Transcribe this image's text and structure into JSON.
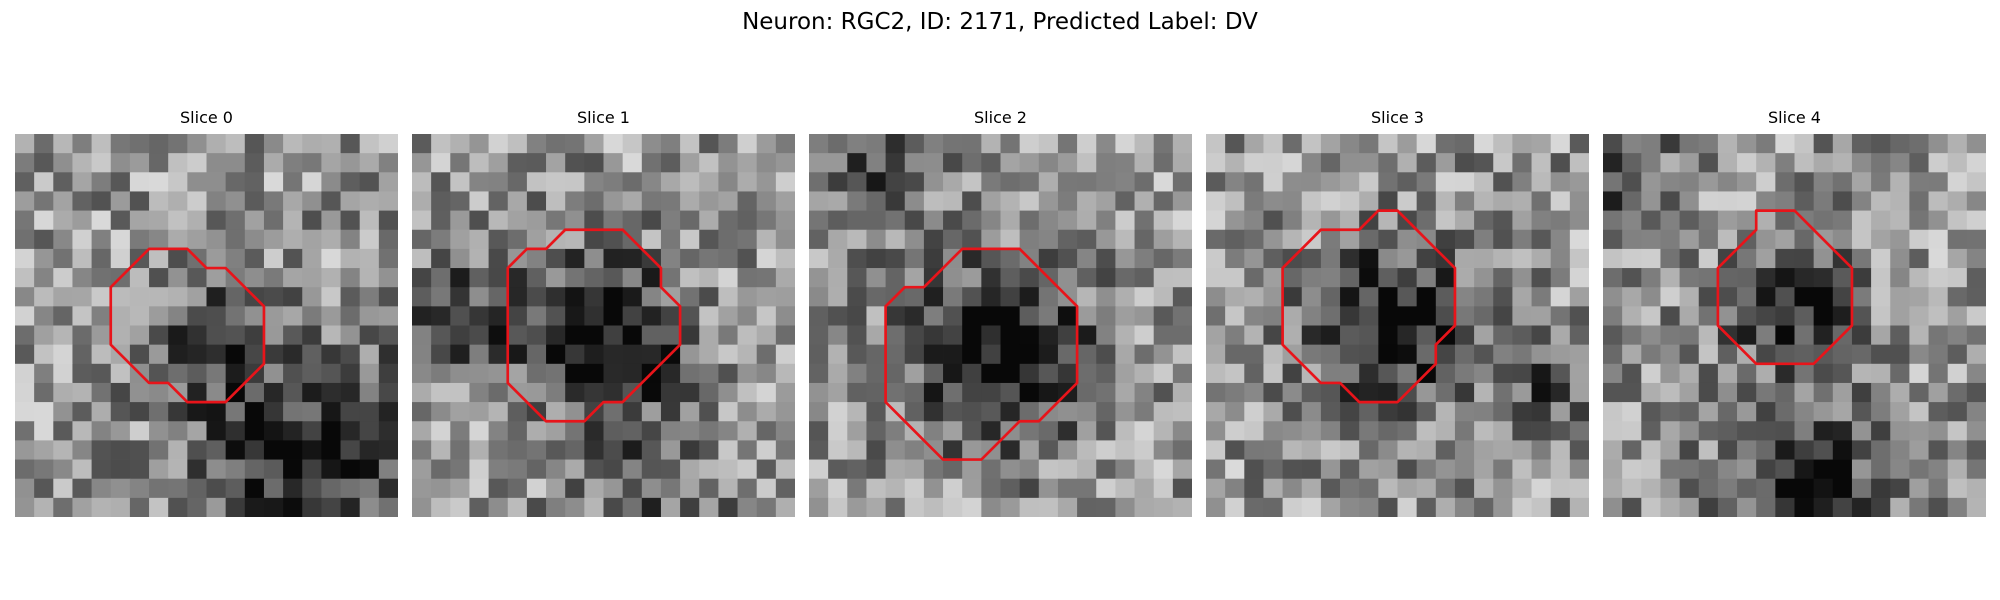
{
  "figure": {
    "title": "Neuron: RGC2, ID: 2171, Predicted Label: DV"
  },
  "panels": [
    {
      "title": "Slice 0",
      "roi_color": "#e8141a",
      "roi": [
        [
          10,
          7
        ],
        [
          11,
          7
        ],
        [
          12,
          8
        ],
        [
          13,
          9
        ],
        [
          13,
          12
        ],
        [
          12,
          13
        ],
        [
          11,
          14
        ],
        [
          9,
          14
        ],
        [
          8,
          13
        ],
        [
          7,
          13
        ],
        [
          6,
          12
        ],
        [
          5,
          11
        ],
        [
          5,
          8
        ],
        [
          6,
          7
        ],
        [
          7,
          6
        ],
        [
          9,
          6
        ]
      ],
      "dark_blobs": [
        [
          9.5,
          10.5,
          3.2,
          0.35
        ],
        [
          17,
          16,
          5,
          0.4
        ],
        [
          12,
          17,
          4,
          0.25
        ]
      ]
    },
    {
      "title": "Slice 1",
      "roi_color": "#e8141a",
      "roi": [
        [
          7,
          6
        ],
        [
          8,
          5
        ],
        [
          11,
          5
        ],
        [
          12,
          6
        ],
        [
          13,
          7
        ],
        [
          13,
          8
        ],
        [
          14,
          9
        ],
        [
          14,
          11
        ],
        [
          13,
          12
        ],
        [
          12,
          13
        ],
        [
          11,
          14
        ],
        [
          10,
          14
        ],
        [
          9,
          15
        ],
        [
          7,
          15
        ],
        [
          6,
          14
        ],
        [
          5,
          13
        ],
        [
          5,
          7
        ],
        [
          6,
          6
        ]
      ],
      "dark_blobs": [
        [
          9.5,
          10,
          4,
          0.6
        ],
        [
          2,
          9,
          3,
          0.3
        ],
        [
          12,
          18,
          4,
          0.2
        ]
      ]
    },
    {
      "title": "Slice 2",
      "roi_color": "#e8141a",
      "roi": [
        [
          6,
          8
        ],
        [
          7,
          7
        ],
        [
          8,
          6
        ],
        [
          11,
          6
        ],
        [
          12,
          7
        ],
        [
          13,
          8
        ],
        [
          14,
          9
        ],
        [
          14,
          13
        ],
        [
          13,
          14
        ],
        [
          12,
          15
        ],
        [
          11,
          15
        ],
        [
          10,
          16
        ],
        [
          9,
          17
        ],
        [
          7,
          17
        ],
        [
          6,
          16
        ],
        [
          5,
          15
        ],
        [
          4,
          14
        ],
        [
          4,
          9
        ],
        [
          5,
          8
        ]
      ],
      "dark_blobs": [
        [
          9.5,
          11,
          4.5,
          0.6
        ],
        [
          3,
          2,
          3,
          0.3
        ]
      ]
    },
    {
      "title": "Slice 3",
      "roi_color": "#e8141a",
      "roi": [
        [
          7,
          5
        ],
        [
          8,
          5
        ],
        [
          9,
          4
        ],
        [
          10,
          4
        ],
        [
          11,
          5
        ],
        [
          12,
          6
        ],
        [
          13,
          7
        ],
        [
          13,
          10
        ],
        [
          12,
          11
        ],
        [
          12,
          12
        ],
        [
          11,
          13
        ],
        [
          10,
          14
        ],
        [
          8,
          14
        ],
        [
          7,
          13
        ],
        [
          6,
          13
        ],
        [
          5,
          12
        ],
        [
          4,
          11
        ],
        [
          4,
          7
        ],
        [
          5,
          6
        ],
        [
          6,
          5
        ]
      ],
      "dark_blobs": [
        [
          9,
          9.5,
          4,
          0.55
        ],
        [
          17,
          13,
          3,
          0.25
        ]
      ]
    },
    {
      "title": "Slice 4",
      "roi_color": "#e8141a",
      "roi": [
        [
          8,
          4
        ],
        [
          10,
          4
        ],
        [
          11,
          5
        ],
        [
          12,
          6
        ],
        [
          13,
          7
        ],
        [
          13,
          10
        ],
        [
          12,
          11
        ],
        [
          11,
          12
        ],
        [
          8,
          12
        ],
        [
          7,
          11
        ],
        [
          6,
          10
        ],
        [
          6,
          7
        ],
        [
          7,
          6
        ],
        [
          8,
          5
        ]
      ],
      "dark_blobs": [
        [
          9.5,
          8.5,
          3.2,
          0.5
        ],
        [
          10,
          18,
          4,
          0.45
        ],
        [
          1,
          2,
          2.5,
          0.3
        ]
      ]
    }
  ]
}
